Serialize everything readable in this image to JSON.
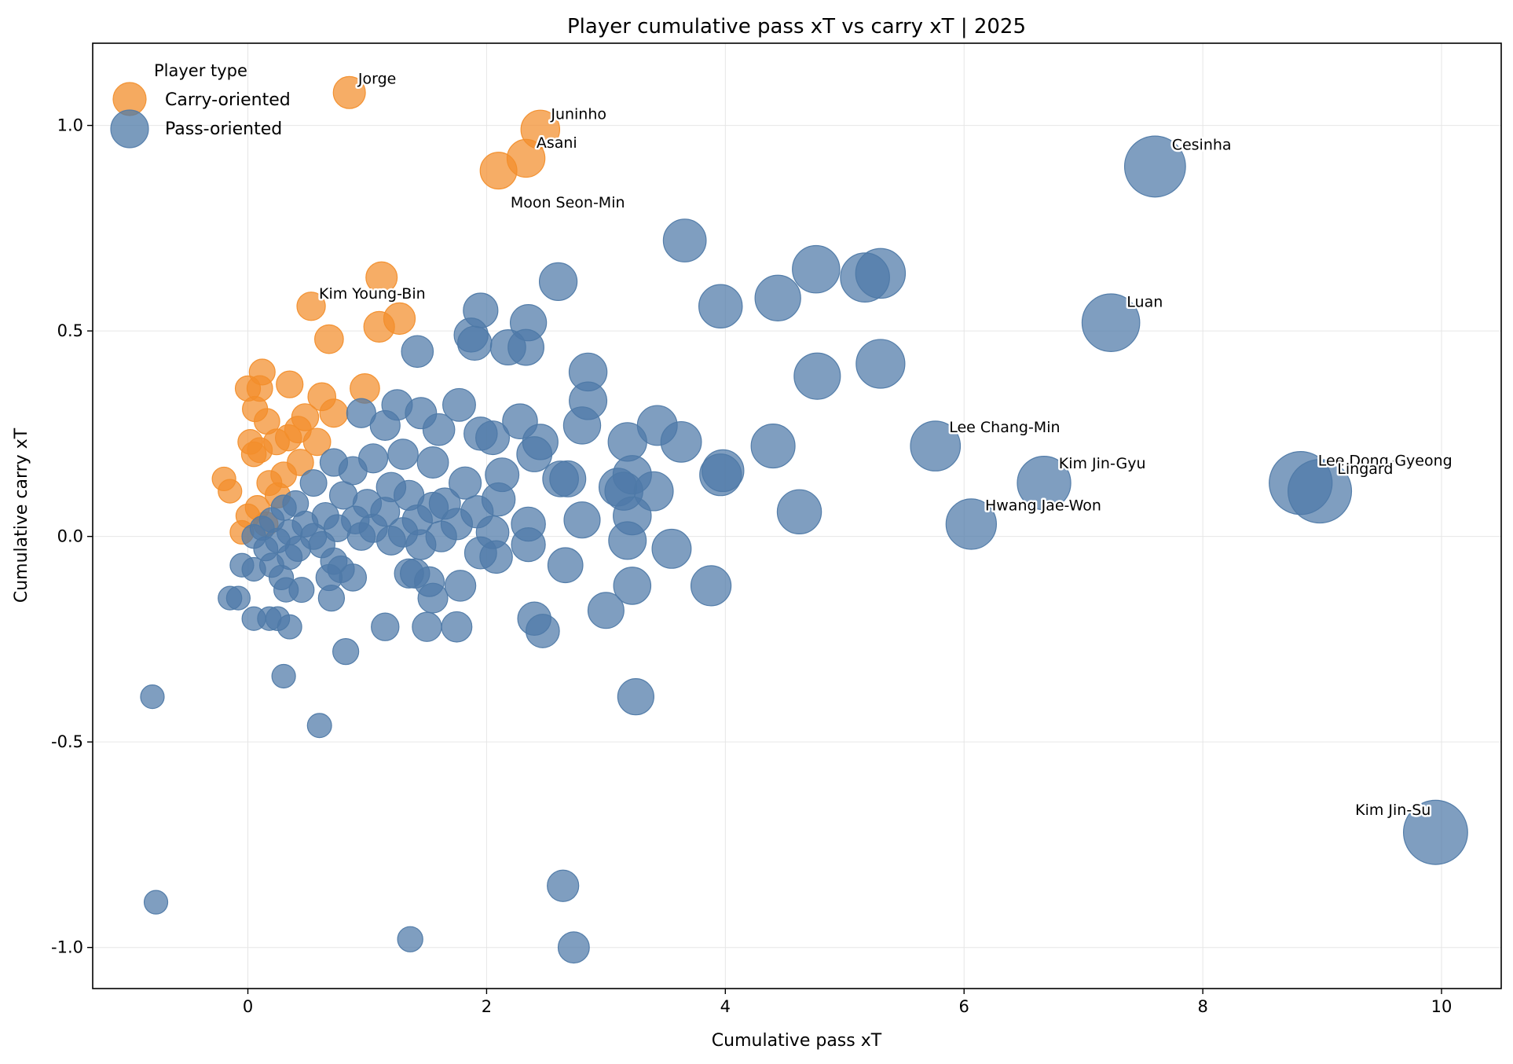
{
  "chart_data": {
    "type": "scatter",
    "title": "Player cumulative pass xT vs carry xT | 2025",
    "xlabel": "Cumulative pass xT",
    "ylabel": "Cumulative carry xT",
    "xlim": [
      -1.3,
      10.5
    ],
    "ylim": [
      -1.1,
      1.2
    ],
    "x_ticks": [
      0,
      2,
      4,
      6,
      8,
      10
    ],
    "x_tick_labels": [
      "0",
      "2",
      "4",
      "6",
      "8",
      "10"
    ],
    "y_ticks": [
      -1.0,
      -0.5,
      0.0,
      0.5,
      1.0
    ],
    "y_tick_labels": [
      "-1.0",
      "-0.5",
      "0.0",
      "0.5",
      "1.0"
    ],
    "grid": true,
    "legend": {
      "title": "Player type",
      "placement": "top-left",
      "entries": [
        {
          "label": "Carry-oriented",
          "color": "#f28e2b"
        },
        {
          "label": "Pass-oriented",
          "color": "#4e79a7"
        }
      ]
    },
    "colors": {
      "carry": "#f28e2b",
      "pass": "#4e79a7"
    },
    "series": [
      {
        "name": "Carry-oriented",
        "color": "#f28e2b",
        "points": [
          {
            "x": 0.85,
            "y": 1.08,
            "label": "Jorge"
          },
          {
            "x": 2.45,
            "y": 0.99,
            "label": "Juninho"
          },
          {
            "x": 2.33,
            "y": 0.92,
            "label": "Asani"
          },
          {
            "x": 2.1,
            "y": 0.89,
            "label": ""
          },
          {
            "x": 1.12,
            "y": 0.63,
            "label": ""
          },
          {
            "x": 0.53,
            "y": 0.56,
            "label": "Kim Young-Bin"
          },
          {
            "x": 1.27,
            "y": 0.53,
            "label": ""
          },
          {
            "x": 1.1,
            "y": 0.51,
            "label": ""
          },
          {
            "x": 0.68,
            "y": 0.48,
            "label": ""
          },
          {
            "x": 0.12,
            "y": 0.4,
            "label": ""
          },
          {
            "x": 0.35,
            "y": 0.37,
            "label": ""
          },
          {
            "x": 0.0,
            "y": 0.36,
            "label": ""
          },
          {
            "x": 0.1,
            "y": 0.36,
            "label": ""
          },
          {
            "x": 0.98,
            "y": 0.36,
            "label": ""
          },
          {
            "x": 0.62,
            "y": 0.34,
            "label": ""
          },
          {
            "x": 0.06,
            "y": 0.31,
            "label": ""
          },
          {
            "x": 0.72,
            "y": 0.3,
            "label": ""
          },
          {
            "x": 0.48,
            "y": 0.29,
            "label": ""
          },
          {
            "x": 0.16,
            "y": 0.28,
            "label": ""
          },
          {
            "x": 0.42,
            "y": 0.26,
            "label": ""
          },
          {
            "x": 0.34,
            "y": 0.24,
            "label": ""
          },
          {
            "x": 0.24,
            "y": 0.23,
            "label": ""
          },
          {
            "x": 0.58,
            "y": 0.23,
            "label": ""
          },
          {
            "x": 0.02,
            "y": 0.23,
            "label": ""
          },
          {
            "x": 0.1,
            "y": 0.21,
            "label": ""
          },
          {
            "x": 0.05,
            "y": 0.2,
            "label": ""
          },
          {
            "x": 0.44,
            "y": 0.18,
            "label": ""
          },
          {
            "x": 0.3,
            "y": 0.15,
            "label": ""
          },
          {
            "x": -0.2,
            "y": 0.14,
            "label": ""
          },
          {
            "x": 0.18,
            "y": 0.13,
            "label": ""
          },
          {
            "x": -0.15,
            "y": 0.11,
            "label": ""
          },
          {
            "x": 0.25,
            "y": 0.1,
            "label": ""
          },
          {
            "x": 0.08,
            "y": 0.07,
            "label": ""
          },
          {
            "x": 0.0,
            "y": 0.05,
            "label": ""
          },
          {
            "x": 0.15,
            "y": 0.03,
            "label": ""
          },
          {
            "x": -0.05,
            "y": 0.01,
            "label": ""
          }
        ]
      },
      {
        "name": "Pass-oriented",
        "color": "#4e79a7",
        "points": [
          {
            "x": 7.6,
            "y": 0.9,
            "label": "Cesinha"
          },
          {
            "x": 7.23,
            "y": 0.52,
            "label": "Luan"
          },
          {
            "x": 5.76,
            "y": 0.22,
            "label": "Lee Chang-Min"
          },
          {
            "x": 6.67,
            "y": 0.13,
            "label": "Kim Jin-Gyu"
          },
          {
            "x": 8.82,
            "y": 0.13,
            "label": "Lee Dong-Gyeong"
          },
          {
            "x": 8.98,
            "y": 0.11,
            "label": "Lingard"
          },
          {
            "x": 6.06,
            "y": 0.03,
            "label": "Hwang Jae-Won"
          },
          {
            "x": 9.95,
            "y": -0.72,
            "label": "Kim Jin-Su"
          },
          {
            "x": 3.66,
            "y": 0.72,
            "label": ""
          },
          {
            "x": 4.76,
            "y": 0.65,
            "label": ""
          },
          {
            "x": 5.17,
            "y": 0.63,
            "label": ""
          },
          {
            "x": 5.3,
            "y": 0.64,
            "label": ""
          },
          {
            "x": 2.6,
            "y": 0.62,
            "label": ""
          },
          {
            "x": 4.44,
            "y": 0.58,
            "label": ""
          },
          {
            "x": 3.96,
            "y": 0.56,
            "label": ""
          },
          {
            "x": 1.95,
            "y": 0.55,
            "label": ""
          },
          {
            "x": 2.35,
            "y": 0.52,
            "label": ""
          },
          {
            "x": 1.87,
            "y": 0.49,
            "label": ""
          },
          {
            "x": 1.9,
            "y": 0.47,
            "label": ""
          },
          {
            "x": 2.18,
            "y": 0.46,
            "label": ""
          },
          {
            "x": 2.33,
            "y": 0.46,
            "label": ""
          },
          {
            "x": 1.42,
            "y": 0.45,
            "label": ""
          },
          {
            "x": 5.3,
            "y": 0.42,
            "label": ""
          },
          {
            "x": 2.85,
            "y": 0.4,
            "label": ""
          },
          {
            "x": 4.77,
            "y": 0.39,
            "label": ""
          },
          {
            "x": 2.85,
            "y": 0.33,
            "label": ""
          },
          {
            "x": 1.77,
            "y": 0.32,
            "label": ""
          },
          {
            "x": 1.25,
            "y": 0.32,
            "label": ""
          },
          {
            "x": 1.45,
            "y": 0.3,
            "label": ""
          },
          {
            "x": 0.95,
            "y": 0.3,
            "label": ""
          },
          {
            "x": 2.28,
            "y": 0.28,
            "label": ""
          },
          {
            "x": 2.8,
            "y": 0.27,
            "label": ""
          },
          {
            "x": 3.43,
            "y": 0.27,
            "label": ""
          },
          {
            "x": 1.15,
            "y": 0.27,
            "label": ""
          },
          {
            "x": 1.6,
            "y": 0.26,
            "label": ""
          },
          {
            "x": 1.95,
            "y": 0.25,
            "label": ""
          },
          {
            "x": 2.05,
            "y": 0.24,
            "label": ""
          },
          {
            "x": 3.18,
            "y": 0.23,
            "label": ""
          },
          {
            "x": 3.63,
            "y": 0.23,
            "label": ""
          },
          {
            "x": 2.45,
            "y": 0.23,
            "label": ""
          },
          {
            "x": 4.4,
            "y": 0.22,
            "label": ""
          },
          {
            "x": 2.4,
            "y": 0.2,
            "label": ""
          },
          {
            "x": 1.3,
            "y": 0.2,
            "label": ""
          },
          {
            "x": 1.05,
            "y": 0.19,
            "label": ""
          },
          {
            "x": 1.55,
            "y": 0.18,
            "label": ""
          },
          {
            "x": 0.72,
            "y": 0.18,
            "label": ""
          },
          {
            "x": 0.88,
            "y": 0.16,
            "label": ""
          },
          {
            "x": 3.98,
            "y": 0.16,
            "label": ""
          },
          {
            "x": 3.96,
            "y": 0.15,
            "label": ""
          },
          {
            "x": 2.13,
            "y": 0.15,
            "label": ""
          },
          {
            "x": 3.22,
            "y": 0.15,
            "label": ""
          },
          {
            "x": 2.62,
            "y": 0.14,
            "label": ""
          },
          {
            "x": 2.68,
            "y": 0.14,
            "label": ""
          },
          {
            "x": 1.82,
            "y": 0.13,
            "label": ""
          },
          {
            "x": 0.55,
            "y": 0.13,
            "label": ""
          },
          {
            "x": 1.2,
            "y": 0.12,
            "label": ""
          },
          {
            "x": 3.1,
            "y": 0.12,
            "label": ""
          },
          {
            "x": 3.15,
            "y": 0.11,
            "label": ""
          },
          {
            "x": 3.4,
            "y": 0.11,
            "label": ""
          },
          {
            "x": 1.35,
            "y": 0.1,
            "label": ""
          },
          {
            "x": 0.8,
            "y": 0.1,
            "label": ""
          },
          {
            "x": 2.1,
            "y": 0.09,
            "label": ""
          },
          {
            "x": 1.0,
            "y": 0.08,
            "label": ""
          },
          {
            "x": 1.65,
            "y": 0.08,
            "label": ""
          },
          {
            "x": 0.4,
            "y": 0.08,
            "label": ""
          },
          {
            "x": 1.55,
            "y": 0.07,
            "label": ""
          },
          {
            "x": 0.3,
            "y": 0.07,
            "label": ""
          },
          {
            "x": 4.62,
            "y": 0.06,
            "label": ""
          },
          {
            "x": 1.92,
            "y": 0.06,
            "label": ""
          },
          {
            "x": 1.15,
            "y": 0.06,
            "label": ""
          },
          {
            "x": 0.65,
            "y": 0.05,
            "label": ""
          },
          {
            "x": 3.22,
            "y": 0.05,
            "label": ""
          },
          {
            "x": 2.8,
            "y": 0.04,
            "label": ""
          },
          {
            "x": 0.9,
            "y": 0.04,
            "label": ""
          },
          {
            "x": 1.42,
            "y": 0.04,
            "label": ""
          },
          {
            "x": 0.2,
            "y": 0.04,
            "label": ""
          },
          {
            "x": 0.48,
            "y": 0.03,
            "label": ""
          },
          {
            "x": 2.35,
            "y": 0.03,
            "label": ""
          },
          {
            "x": 1.75,
            "y": 0.03,
            "label": ""
          },
          {
            "x": 1.05,
            "y": 0.02,
            "label": ""
          },
          {
            "x": 0.12,
            "y": 0.02,
            "label": ""
          },
          {
            "x": 0.75,
            "y": 0.02,
            "label": ""
          },
          {
            "x": 1.3,
            "y": 0.01,
            "label": ""
          },
          {
            "x": 0.35,
            "y": 0.01,
            "label": ""
          },
          {
            "x": 2.05,
            "y": 0.01,
            "label": ""
          },
          {
            "x": 1.62,
            "y": 0.0,
            "label": ""
          },
          {
            "x": 0.55,
            "y": 0.0,
            "label": ""
          },
          {
            "x": 0.05,
            "y": 0.0,
            "label": ""
          },
          {
            "x": 0.95,
            "y": 0.0,
            "label": ""
          },
          {
            "x": 0.25,
            "y": -0.01,
            "label": ""
          },
          {
            "x": 1.2,
            "y": -0.01,
            "label": ""
          },
          {
            "x": 3.18,
            "y": -0.01,
            "label": ""
          },
          {
            "x": 2.35,
            "y": -0.02,
            "label": ""
          },
          {
            "x": 0.62,
            "y": -0.02,
            "label": ""
          },
          {
            "x": 1.45,
            "y": -0.02,
            "label": ""
          },
          {
            "x": 0.42,
            "y": -0.03,
            "label": ""
          },
          {
            "x": 3.55,
            "y": -0.03,
            "label": ""
          },
          {
            "x": 0.15,
            "y": -0.03,
            "label": ""
          },
          {
            "x": 1.95,
            "y": -0.04,
            "label": ""
          },
          {
            "x": 2.08,
            "y": -0.05,
            "label": ""
          },
          {
            "x": 0.35,
            "y": -0.05,
            "label": ""
          },
          {
            "x": 0.72,
            "y": -0.06,
            "label": ""
          },
          {
            "x": -0.05,
            "y": -0.07,
            "label": ""
          },
          {
            "x": 2.66,
            "y": -0.07,
            "label": ""
          },
          {
            "x": 0.2,
            "y": -0.07,
            "label": ""
          },
          {
            "x": 0.78,
            "y": -0.08,
            "label": ""
          },
          {
            "x": 0.05,
            "y": -0.08,
            "label": ""
          },
          {
            "x": 1.35,
            "y": -0.09,
            "label": ""
          },
          {
            "x": 1.4,
            "y": -0.09,
            "label": ""
          },
          {
            "x": 0.28,
            "y": -0.1,
            "label": ""
          },
          {
            "x": 0.88,
            "y": -0.1,
            "label": ""
          },
          {
            "x": 0.68,
            "y": -0.1,
            "label": ""
          },
          {
            "x": 1.52,
            "y": -0.11,
            "label": ""
          },
          {
            "x": 3.88,
            "y": -0.12,
            "label": ""
          },
          {
            "x": 3.22,
            "y": -0.12,
            "label": ""
          },
          {
            "x": 1.78,
            "y": -0.12,
            "label": ""
          },
          {
            "x": 0.45,
            "y": -0.13,
            "label": ""
          },
          {
            "x": 0.32,
            "y": -0.13,
            "label": ""
          },
          {
            "x": 0.7,
            "y": -0.15,
            "label": ""
          },
          {
            "x": -0.15,
            "y": -0.15,
            "label": ""
          },
          {
            "x": -0.08,
            "y": -0.15,
            "label": ""
          },
          {
            "x": 1.55,
            "y": -0.15,
            "label": ""
          },
          {
            "x": 3.0,
            "y": -0.18,
            "label": ""
          },
          {
            "x": 0.05,
            "y": -0.2,
            "label": ""
          },
          {
            "x": 0.18,
            "y": -0.2,
            "label": ""
          },
          {
            "x": 0.25,
            "y": -0.2,
            "label": ""
          },
          {
            "x": 2.4,
            "y": -0.2,
            "label": ""
          },
          {
            "x": 1.5,
            "y": -0.22,
            "label": ""
          },
          {
            "x": 1.75,
            "y": -0.22,
            "label": ""
          },
          {
            "x": 0.35,
            "y": -0.22,
            "label": ""
          },
          {
            "x": 1.15,
            "y": -0.22,
            "label": ""
          },
          {
            "x": 2.47,
            "y": -0.23,
            "label": ""
          },
          {
            "x": 0.82,
            "y": -0.28,
            "label": ""
          },
          {
            "x": 0.3,
            "y": -0.34,
            "label": ""
          },
          {
            "x": 3.25,
            "y": -0.39,
            "label": ""
          },
          {
            "x": -0.8,
            "y": -0.39,
            "label": ""
          },
          {
            "x": 0.6,
            "y": -0.46,
            "label": ""
          },
          {
            "x": 2.64,
            "y": -0.85,
            "label": ""
          },
          {
            "x": -0.77,
            "y": -0.89,
            "label": ""
          },
          {
            "x": 1.36,
            "y": -0.98,
            "label": ""
          },
          {
            "x": 2.73,
            "y": -1.0,
            "label": ""
          }
        ]
      }
    ],
    "floating_labels": [
      {
        "text": "Moon Seon-Min",
        "x": 2.2,
        "y": 0.8
      }
    ]
  }
}
